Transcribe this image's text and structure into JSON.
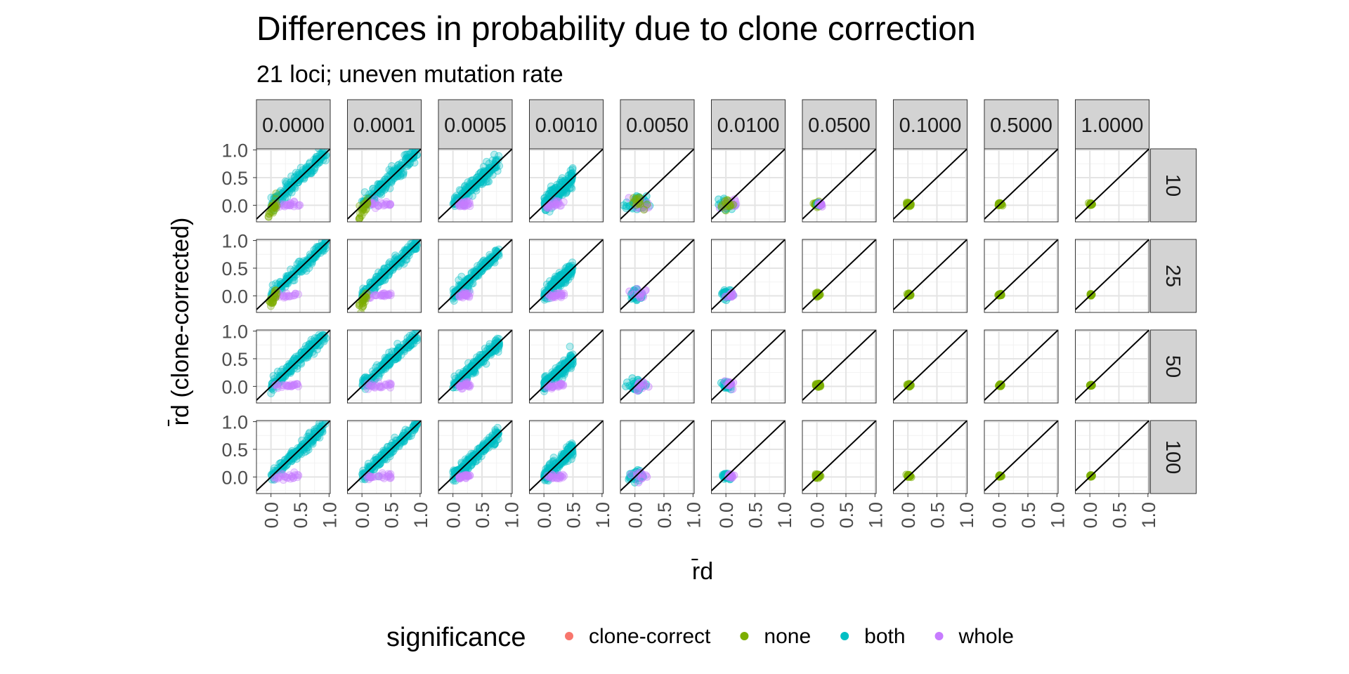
{
  "chart_data": {
    "type": "scatter",
    "title": "Differences in probability due to clone correction",
    "subtitle": "21 loci; uneven mutation rate",
    "xlabel": "r̄d",
    "ylabel": "r̄d (clone-corrected)",
    "facet_columns": [
      "0.0000",
      "0.0001",
      "0.0005",
      "0.0010",
      "0.0050",
      "0.0100",
      "0.0500",
      "0.1000",
      "0.5000",
      "1.0000"
    ],
    "facet_rows": [
      "10",
      "25",
      "50",
      "100"
    ],
    "x_ticks": [
      "0.0",
      "0.5",
      "1.0"
    ],
    "y_ticks": [
      "0.0",
      "0.5",
      "1.0"
    ],
    "xlim": [
      -0.25,
      1.02
    ],
    "ylim": [
      -0.3,
      1.02
    ],
    "reference_line": "y = x",
    "grid": true,
    "legend": {
      "title": "significance",
      "position": "bottom",
      "entries": [
        {
          "label": "clone-correct",
          "color": "#F8766D"
        },
        {
          "label": "none",
          "color": "#7CAE00"
        },
        {
          "label": "both",
          "color": "#00BFC4"
        },
        {
          "label": "whole",
          "color": "#C77CFF"
        }
      ]
    },
    "point_clouds": [
      [
        {
          "series": "both",
          "x_range": [
            0.0,
            1.0
          ],
          "y_from": -0.05,
          "y_to": 1.0,
          "spread": 0.07
        },
        {
          "series": "whole",
          "x_range": [
            0.05,
            0.5
          ],
          "y_from": 0.0,
          "y_to": 0.02,
          "spread": 0.03
        },
        {
          "series": "none",
          "x_range": [
            -0.05,
            0.1
          ],
          "y_from": -0.2,
          "y_to": 0.05,
          "spread": 0.07
        },
        {
          "series": "both",
          "x_range": [
            0.05,
            0.35
          ],
          "y_from": 0.3,
          "y_to": 0.6,
          "spread": 0.06
        },
        {
          "series": "both",
          "x_range": [
            0.0,
            0.95
          ],
          "y_from": 0.0,
          "y_to": 0.95,
          "spread": 0.07
        },
        {
          "series": "both",
          "x_range": [
            0.0,
            0.95
          ],
          "y_from": 0.0,
          "y_to": 0.95,
          "spread": 0.07
        },
        {
          "series": "both",
          "x_range": [
            0.05,
            0.9
          ],
          "y_from": 0.05,
          "y_to": 0.9,
          "spread": 0.07
        },
        {
          "series": "both",
          "x_range": [
            0.0,
            0.75
          ],
          "y_from": 0.0,
          "y_to": 0.75,
          "spread": 0.07
        }
      ],
      [
        {
          "series": "both",
          "x_range": [
            0.0,
            1.0
          ],
          "y_from": 0.0,
          "y_to": 1.0,
          "spread": 0.05
        },
        {
          "series": "whole",
          "x_range": [
            0.05,
            0.5
          ],
          "y_from": 0.0,
          "y_to": 0.05,
          "spread": 0.04
        },
        {
          "series": "none",
          "x_range": [
            -0.05,
            0.1
          ],
          "y_from": -0.15,
          "y_to": 0.05,
          "spread": 0.06
        },
        {
          "series": "both",
          "x_range": [
            0.1,
            0.3
          ],
          "y_from": 0.3,
          "y_to": 0.5,
          "spread": 0.05
        },
        {
          "series": "both",
          "x_range": [
            0.0,
            1.0
          ],
          "y_from": 0.0,
          "y_to": 1.0,
          "spread": 0.06
        },
        {
          "series": "both",
          "x_range": [
            0.0,
            0.9
          ],
          "y_from": 0.0,
          "y_to": 0.9,
          "spread": 0.06
        },
        {
          "series": "both",
          "x_range": [
            0.0,
            0.85
          ],
          "y_from": 0.0,
          "y_to": 0.85,
          "spread": 0.06
        },
        {
          "series": "both",
          "x_range": [
            0.0,
            0.6
          ],
          "y_from": 0.0,
          "y_to": 0.6,
          "spread": 0.06
        }
      ]
    ]
  }
}
